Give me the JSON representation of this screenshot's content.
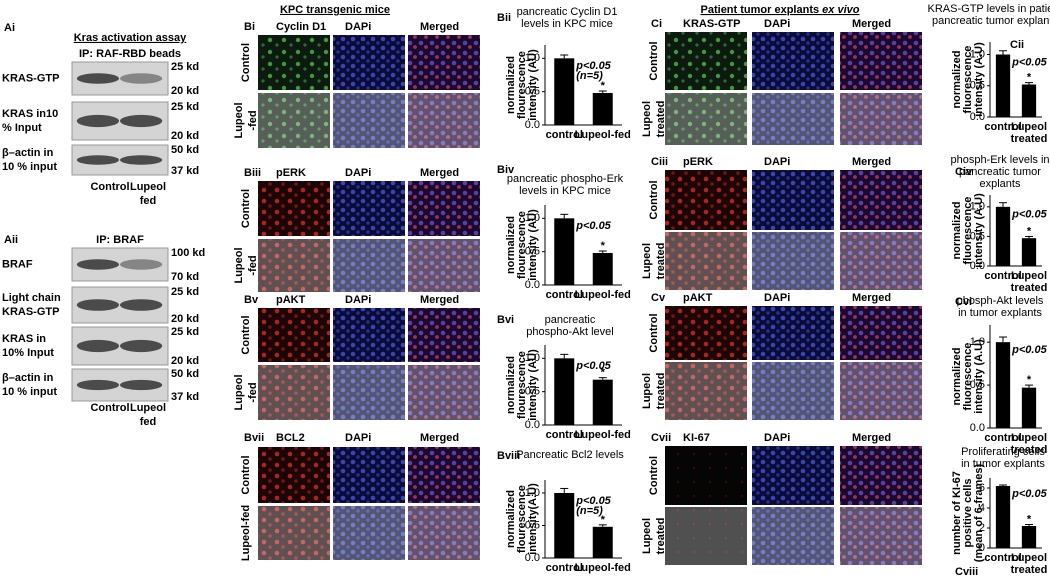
{
  "panel_a": {
    "ai": {
      "label": "Ai",
      "title": "Kras activation assay",
      "subtitle": "IP: RAF-RBD beads",
      "rows": [
        {
          "label": [
            "KRAS-GTP"
          ],
          "kd": [
            "25 kd",
            "20 kd"
          ]
        },
        {
          "label": [
            "KRAS in10",
            "% Input"
          ],
          "kd": [
            "25 kd",
            "20 kd"
          ]
        },
        {
          "label": [
            "β–actin in",
            "10 % input"
          ],
          "kd": [
            "50 kd",
            "37 kd"
          ]
        }
      ],
      "lanes": [
        [
          "Control"
        ],
        [
          "Lupeol",
          "fed"
        ]
      ]
    },
    "aii": {
      "label": "Aii",
      "subtitle": "IP: BRAF",
      "rows": [
        {
          "label": [
            "BRAF"
          ],
          "kd": [
            "100 kd",
            "70 kd"
          ]
        },
        {
          "label": [
            "Light chain",
            "KRAS-GTP"
          ],
          "kd": [
            "25 kd",
            "20 kd"
          ]
        },
        {
          "label": [
            "KRAS in",
            "10% Input"
          ],
          "kd": [
            "25 kd",
            "20 kd"
          ]
        },
        {
          "label": [
            "β–actin in",
            "10 % input"
          ],
          "kd": [
            "50 kd",
            "37 kd"
          ]
        }
      ],
      "lanes": [
        [
          "Control"
        ],
        [
          "Lupeol",
          "fed"
        ]
      ]
    }
  },
  "panel_b": {
    "title": "KPC transgenic mice",
    "blocks": [
      {
        "label": "Bi",
        "channels": [
          "Cyclin D1",
          "DAPi",
          "Merged"
        ],
        "rows": [
          [
            "Control"
          ],
          [
            "Lupeol",
            "-fed"
          ]
        ]
      },
      {
        "label": "Biii",
        "channels": [
          "pERK",
          "DAPi",
          "Merged"
        ],
        "rows": [
          [
            "Control"
          ],
          [
            "Lupeol",
            "-fed"
          ]
        ]
      },
      {
        "label": "Bv",
        "channels": [
          "pAKT",
          "DAPi",
          "Merged"
        ],
        "rows": [
          [
            "Control"
          ],
          [
            "Lupeol",
            "-fed"
          ]
        ]
      },
      {
        "label": "Bvii",
        "channels": [
          "BCL2",
          "DAPi",
          "Merged"
        ],
        "rows": [
          [
            "Control"
          ],
          [
            "Lupeol-fed"
          ]
        ]
      }
    ]
  },
  "panel_c": {
    "title": "Patient tumor explants",
    "title_italic": "ex vivo",
    "blocks": [
      {
        "label": "Ci",
        "channels": [
          "KRAS-GTP",
          "DAPi",
          "Merged"
        ],
        "rows": [
          [
            "Control"
          ],
          [
            "Lupeol",
            "treated"
          ]
        ]
      },
      {
        "label": "Ciii",
        "channels": [
          "pERK",
          "DAPi",
          "Merged"
        ],
        "rows": [
          [
            "Control"
          ],
          [
            "Lupeol",
            "treated"
          ]
        ]
      },
      {
        "label": "Cv",
        "channels": [
          "pAKT",
          "DAPi",
          "Merged"
        ],
        "rows": [
          [
            "Control"
          ],
          [
            "Lupeol",
            "treated"
          ]
        ]
      },
      {
        "label": "Cvii",
        "channels": [
          "KI-67",
          "DAPi",
          "Merged"
        ],
        "rows": [
          [
            "Control"
          ],
          [
            "Lupeol",
            "treated"
          ]
        ]
      }
    ]
  },
  "bar_charts": [
    {
      "type": "bar",
      "label": "Bii",
      "title": [
        "pancreatic Cyclin D1",
        "levels in KPC mice"
      ],
      "ylabel": [
        "normalized",
        "flourescence",
        "intensity (AU)"
      ],
      "categories": [
        [
          "control"
        ],
        [
          "Lupeol-fed"
        ]
      ],
      "values": [
        1.0,
        0.48
      ],
      "errors": [
        0.05,
        0.03
      ],
      "ylim": [
        0,
        1.2
      ],
      "yticks": [
        {
          "value": 0,
          "label": "0.0"
        },
        {
          "value": 0.5,
          "label": "0.5"
        },
        {
          "value": 1,
          "label": "1.0"
        }
      ],
      "annotations": [
        "p<0.05",
        "(n=5)"
      ],
      "star": "*"
    },
    {
      "type": "bar",
      "label": "Biv",
      "title": [
        "pancreatic phospho-Erk",
        "levels in KPC mice"
      ],
      "ylabel": [
        "normalized",
        "flourescence",
        "intensity (AU)"
      ],
      "categories": [
        [
          "control"
        ],
        [
          "Lupeol-fed"
        ]
      ],
      "values": [
        1.0,
        0.48
      ],
      "errors": [
        0.06,
        0.03
      ],
      "ylim": [
        0,
        1.2
      ],
      "yticks": [
        {
          "value": 0,
          "label": "0.0"
        },
        {
          "value": 0.5,
          "label": "0.5"
        },
        {
          "value": 1,
          "label": "1.0"
        }
      ],
      "annotations": [
        "p<0.05"
      ],
      "star": "*"
    },
    {
      "type": "bar",
      "label": "Bvi",
      "title": [
        "pancreatic",
        "phospho-Akt level"
      ],
      "ylabel": [
        "normalized",
        "flourescence",
        "intensity (AU)"
      ],
      "categories": [
        [
          "control"
        ],
        [
          "Lupeol-fed"
        ]
      ],
      "values": [
        1.0,
        0.68
      ],
      "errors": [
        0.06,
        0.03
      ],
      "ylim": [
        0,
        1.2
      ],
      "yticks": [
        {
          "value": 0,
          "label": "0.0"
        },
        {
          "value": 0.5,
          "label": "0.5"
        },
        {
          "value": 1,
          "label": "1.0"
        }
      ],
      "annotations": [
        "p<0.05"
      ],
      "star": "*"
    },
    {
      "type": "bar",
      "label": "Bviii",
      "title": [
        "Pancreatic Bcl2 levels"
      ],
      "ylabel": [
        "normalized",
        "flourescence",
        "intensity(A.U)"
      ],
      "categories": [
        [
          "control"
        ],
        [
          "Lupeol-fed"
        ]
      ],
      "values": [
        1.0,
        0.48
      ],
      "errors": [
        0.07,
        0.03
      ],
      "ylim": [
        0,
        1.2
      ],
      "yticks": [
        {
          "value": 0,
          "label": "0.0"
        },
        {
          "value": 0.5,
          "label": "0.5"
        },
        {
          "value": 1,
          "label": "1.0"
        }
      ],
      "annotations": [
        "p<0.05",
        "(n=5)"
      ],
      "star": "*"
    },
    {
      "type": "bar",
      "label": "Cii",
      "title": [
        "KRAS-GTP levels in patient",
        "pancreatic tumor explants"
      ],
      "ylabel": [
        "normalized",
        "fluorescence",
        "intensity (A.U)"
      ],
      "categories": [
        [
          "control"
        ],
        [
          "Lupeol",
          "treated"
        ]
      ],
      "values": [
        1.0,
        0.52
      ],
      "errors": [
        0.06,
        0.03
      ],
      "ylim": [
        0,
        1.2
      ],
      "yticks": [
        {
          "value": 0,
          "label": "0.0"
        },
        {
          "value": 0.5,
          "label": "0.5"
        },
        {
          "value": 1,
          "label": "1.0"
        }
      ],
      "annotations": [
        "p<0.05"
      ],
      "star": "*"
    },
    {
      "type": "bar",
      "label": "Civ",
      "title": [
        "phosph-Erk levels in",
        "pancreatic tumor",
        "explants"
      ],
      "ylabel": [
        "normalized",
        "fluorescence",
        "intensity (A.U)"
      ],
      "categories": [
        [
          "control"
        ],
        [
          "Lupeol",
          "treated"
        ]
      ],
      "values": [
        1.0,
        0.47
      ],
      "errors": [
        0.07,
        0.03
      ],
      "ylim": [
        0,
        1.2
      ],
      "yticks": [
        {
          "value": 0,
          "label": "0.0"
        },
        {
          "value": 0.5,
          "label": "0.5"
        },
        {
          "value": 1,
          "label": "1.0"
        }
      ],
      "annotations": [
        "p<0.05"
      ],
      "star": "*"
    },
    {
      "type": "bar",
      "label": "Cvi",
      "title": [
        "phosph-Akt levels",
        "in tumor explants"
      ],
      "ylabel": [
        "normalized",
        "fluorescence",
        "intensity (A.U)"
      ],
      "categories": [
        [
          "control"
        ],
        [
          "Lupeol",
          "treated"
        ]
      ],
      "values": [
        1.0,
        0.47
      ],
      "errors": [
        0.06,
        0.03
      ],
      "ylim": [
        0,
        1.2
      ],
      "yticks": [
        {
          "value": 0,
          "label": "0.0"
        },
        {
          "value": 0.5,
          "label": "0.5"
        },
        {
          "value": 1,
          "label": "1.0"
        }
      ],
      "annotations": [
        "p<0.05"
      ],
      "star": "*"
    },
    {
      "type": "bar",
      "label": "Cviii",
      "title": [
        "Proliferating cells",
        "in tumor explants"
      ],
      "ylabel": [
        "number of KI-67",
        "positive cells",
        "(mean of 6-frames)"
      ],
      "categories": [
        [
          "control"
        ],
        [
          "Lupeol",
          "treated"
        ]
      ],
      "values": [
        6.2,
        2.2
      ],
      "errors": [
        0.1,
        0.15
      ],
      "ylim": [
        0,
        7
      ],
      "yticks": [
        0,
        2,
        4,
        6
      ],
      "annotations": [
        "p<0.05"
      ],
      "star": "*"
    }
  ]
}
